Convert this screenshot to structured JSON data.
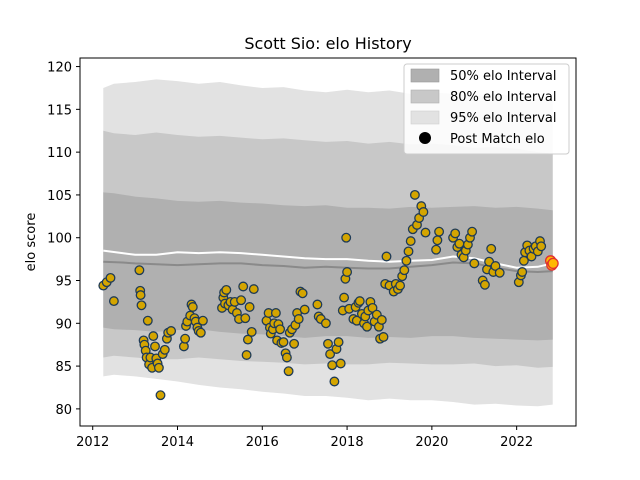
{
  "chart_data": {
    "type": "scatter",
    "title": "Scott Sio: elo History",
    "xlabel": "",
    "ylabel": "elo score",
    "xlim": [
      2011.7,
      2023.4
    ],
    "ylim": [
      78,
      121
    ],
    "x_ticks": [
      2012,
      2014,
      2016,
      2018,
      2020,
      2022
    ],
    "y_ticks": [
      80,
      85,
      90,
      95,
      100,
      105,
      110,
      115,
      120
    ],
    "grid": false,
    "legend_position": "top-right",
    "legend": [
      {
        "label": "50% elo Interval",
        "kind": "band",
        "color": "#b0b0b0"
      },
      {
        "label": "80% elo Interval",
        "kind": "band",
        "color": "#c8c8c8"
      },
      {
        "label": "95% elo Interval",
        "kind": "band",
        "color": "#e1e1e1"
      },
      {
        "label": "Post Match elo",
        "kind": "marker",
        "color": "#000000"
      }
    ],
    "colors": {
      "band50": "#b0b0b0",
      "band80": "#c8c8c8",
      "band95": "#e2e2e2",
      "median_line": "#8a8a8a",
      "mean_line": "#ffffff",
      "point_fill": "#d4a500",
      "point_edge": "#1f3b57",
      "recent_fill": "#ffb800",
      "recent_edge": "#e03030"
    },
    "bands": {
      "x": [
        2012.25,
        2012.5,
        2013.0,
        2013.5,
        2014.0,
        2014.5,
        2015.0,
        2015.5,
        2016.0,
        2016.5,
        2017.0,
        2017.5,
        2018.0,
        2018.5,
        2019.0,
        2019.5,
        2020.0,
        2020.5,
        2021.0,
        2021.5,
        2022.0,
        2022.5,
        2022.85
      ],
      "p95_upper": [
        117.5,
        118.0,
        118.2,
        118.5,
        118.3,
        118.0,
        118.2,
        117.8,
        117.5,
        117.6,
        117.2,
        117.0,
        117.3,
        117.0,
        117.2,
        116.8,
        117.0,
        116.8,
        116.5,
        116.8,
        116.5,
        116.2,
        116.0
      ],
      "p80_upper": [
        112.5,
        112.2,
        112.0,
        112.3,
        112.0,
        111.8,
        111.9,
        111.7,
        111.5,
        111.6,
        111.4,
        111.2,
        111.3,
        111.0,
        111.2,
        110.9,
        111.0,
        110.8,
        110.5,
        110.6,
        110.4,
        110.0,
        109.8
      ],
      "p50_upper": [
        105.3,
        105.2,
        104.8,
        104.6,
        104.3,
        104.2,
        104.3,
        104.1,
        104.0,
        103.8,
        103.7,
        103.8,
        103.5,
        103.5,
        103.4,
        103.6,
        103.5,
        103.6,
        103.7,
        103.5,
        103.6,
        103.4,
        103.2
      ],
      "p50_lower": [
        89.5,
        89.3,
        89.2,
        89.0,
        89.2,
        89.3,
        89.0,
        88.8,
        88.7,
        88.5,
        88.3,
        88.5,
        88.5,
        88.3,
        88.4,
        88.3,
        88.5,
        88.5,
        88.3,
        88.2,
        88.1,
        88.0,
        88.1
      ],
      "p80_lower": [
        86.0,
        86.2,
        86.0,
        85.8,
        85.8,
        86.0,
        85.8,
        85.6,
        85.5,
        85.4,
        85.2,
        85.3,
        85.2,
        85.2,
        85.4,
        85.3,
        85.2,
        85.2,
        85.3,
        85.0,
        85.1,
        84.8,
        84.9
      ],
      "p95_lower": [
        83.8,
        84.0,
        83.8,
        83.5,
        83.2,
        82.8,
        82.5,
        82.3,
        82.0,
        81.8,
        81.5,
        81.5,
        81.3,
        81.0,
        81.2,
        81.0,
        81.0,
        80.8,
        80.5,
        80.6,
        80.4,
        80.3,
        80.5
      ]
    },
    "median_line": {
      "x": [
        2012.25,
        2012.7,
        2013.0,
        2013.5,
        2014.0,
        2014.5,
        2015.0,
        2015.5,
        2016.0,
        2016.5,
        2017.0,
        2017.5,
        2018.0,
        2018.5,
        2019.0,
        2019.5,
        2020.0,
        2020.5,
        2021.0,
        2021.5,
        2022.0,
        2022.5,
        2022.85
      ],
      "y": [
        97.2,
        97.1,
        97.0,
        96.9,
        96.8,
        96.9,
        97.0,
        97.0,
        96.8,
        96.7,
        96.5,
        96.6,
        96.5,
        96.4,
        96.4,
        96.6,
        96.8,
        97.1,
        97.0,
        96.5,
        96.1,
        96.0,
        96.1
      ]
    },
    "mean_line": {
      "x": [
        2012.25,
        2012.7,
        2013.0,
        2013.5,
        2014.0,
        2014.5,
        2015.0,
        2015.5,
        2016.0,
        2016.5,
        2017.0,
        2017.5,
        2018.0,
        2018.5,
        2019.0,
        2019.5,
        2020.0,
        2020.5,
        2021.0,
        2021.5,
        2022.0,
        2022.5,
        2022.85
      ],
      "y": [
        98.5,
        98.2,
        98.0,
        98.0,
        98.3,
        98.2,
        98.3,
        98.2,
        98.0,
        97.8,
        97.6,
        97.5,
        97.5,
        97.3,
        97.2,
        97.3,
        97.4,
        97.8,
        97.6,
        97.0,
        96.5,
        96.6,
        97.0
      ]
    },
    "points": [
      [
        2012.25,
        94.4
      ],
      [
        2012.33,
        94.8
      ],
      [
        2012.42,
        95.3
      ],
      [
        2012.5,
        92.6
      ],
      [
        2013.1,
        96.2
      ],
      [
        2013.12,
        93.8
      ],
      [
        2013.13,
        93.3
      ],
      [
        2013.15,
        92.1
      ],
      [
        2013.2,
        88.0
      ],
      [
        2013.22,
        87.5
      ],
      [
        2013.25,
        86.8
      ],
      [
        2013.27,
        86.0
      ],
      [
        2013.3,
        90.3
      ],
      [
        2013.33,
        85.2
      ],
      [
        2013.36,
        86.0
      ],
      [
        2013.4,
        84.8
      ],
      [
        2013.43,
        88.5
      ],
      [
        2013.47,
        87.3
      ],
      [
        2013.5,
        85.9
      ],
      [
        2013.53,
        85.3
      ],
      [
        2013.56,
        84.8
      ],
      [
        2013.6,
        81.6
      ],
      [
        2013.65,
        86.4
      ],
      [
        2013.7,
        86.9
      ],
      [
        2013.75,
        88.2
      ],
      [
        2013.78,
        88.9
      ],
      [
        2013.85,
        89.1
      ],
      [
        2014.15,
        87.3
      ],
      [
        2014.18,
        88.2
      ],
      [
        2014.2,
        89.7
      ],
      [
        2014.23,
        90.2
      ],
      [
        2014.3,
        90.9
      ],
      [
        2014.33,
        92.2
      ],
      [
        2014.36,
        91.9
      ],
      [
        2014.4,
        90.6
      ],
      [
        2014.43,
        90.2
      ],
      [
        2014.47,
        89.5
      ],
      [
        2014.5,
        89.1
      ],
      [
        2014.55,
        88.9
      ],
      [
        2014.6,
        90.3
      ],
      [
        2015.05,
        91.8
      ],
      [
        2015.08,
        93.0
      ],
      [
        2015.1,
        93.6
      ],
      [
        2015.12,
        92.3
      ],
      [
        2015.15,
        93.9
      ],
      [
        2015.2,
        92.1
      ],
      [
        2015.25,
        92.5
      ],
      [
        2015.3,
        91.6
      ],
      [
        2015.35,
        92.5
      ],
      [
        2015.4,
        91.2
      ],
      [
        2015.45,
        90.5
      ],
      [
        2015.5,
        92.7
      ],
      [
        2015.55,
        94.3
      ],
      [
        2015.6,
        90.6
      ],
      [
        2015.63,
        86.3
      ],
      [
        2015.66,
        88.1
      ],
      [
        2015.7,
        91.9
      ],
      [
        2015.75,
        89.0
      ],
      [
        2015.8,
        94.0
      ],
      [
        2016.1,
        90.3
      ],
      [
        2016.15,
        91.2
      ],
      [
        2016.18,
        89.5
      ],
      [
        2016.2,
        88.8
      ],
      [
        2016.25,
        89.3
      ],
      [
        2016.28,
        90.0
      ],
      [
        2016.32,
        91.2
      ],
      [
        2016.35,
        88.0
      ],
      [
        2016.38,
        89.9
      ],
      [
        2016.42,
        89.3
      ],
      [
        2016.45,
        87.7
      ],
      [
        2016.5,
        87.8
      ],
      [
        2016.55,
        86.5
      ],
      [
        2016.58,
        86.0
      ],
      [
        2016.62,
        84.4
      ],
      [
        2016.65,
        88.9
      ],
      [
        2016.7,
        89.3
      ],
      [
        2016.75,
        87.6
      ],
      [
        2016.78,
        89.8
      ],
      [
        2016.82,
        91.2
      ],
      [
        2016.86,
        90.5
      ],
      [
        2016.9,
        93.7
      ],
      [
        2016.95,
        93.5
      ],
      [
        2017.0,
        91.6
      ],
      [
        2017.3,
        92.2
      ],
      [
        2017.33,
        90.8
      ],
      [
        2017.38,
        90.5
      ],
      [
        2017.5,
        90.0
      ],
      [
        2017.55,
        87.6
      ],
      [
        2017.6,
        86.4
      ],
      [
        2017.65,
        85.1
      ],
      [
        2017.7,
        83.2
      ],
      [
        2017.75,
        87.0
      ],
      [
        2017.8,
        87.8
      ],
      [
        2017.85,
        85.3
      ],
      [
        2017.9,
        91.5
      ],
      [
        2017.93,
        93.0
      ],
      [
        2017.96,
        95.2
      ],
      [
        2018.0,
        96.0
      ],
      [
        2018.05,
        91.7
      ],
      [
        2017.98,
        100.0
      ],
      [
        2018.15,
        90.5
      ],
      [
        2018.2,
        91.9
      ],
      [
        2018.23,
        90.3
      ],
      [
        2018.27,
        92.4
      ],
      [
        2018.3,
        92.6
      ],
      [
        2018.35,
        91.1
      ],
      [
        2018.4,
        90.0
      ],
      [
        2018.43,
        90.8
      ],
      [
        2018.47,
        89.6
      ],
      [
        2018.5,
        91.5
      ],
      [
        2018.55,
        92.5
      ],
      [
        2018.6,
        91.8
      ],
      [
        2018.65,
        90.2
      ],
      [
        2018.7,
        91.0
      ],
      [
        2018.75,
        89.6
      ],
      [
        2018.78,
        88.2
      ],
      [
        2018.82,
        90.4
      ],
      [
        2018.86,
        88.4
      ],
      [
        2018.9,
        94.6
      ],
      [
        2018.93,
        97.8
      ],
      [
        2019.0,
        94.4
      ],
      [
        2019.1,
        93.7
      ],
      [
        2019.15,
        94.6
      ],
      [
        2019.2,
        94.0
      ],
      [
        2019.25,
        94.4
      ],
      [
        2019.3,
        95.5
      ],
      [
        2019.35,
        96.2
      ],
      [
        2019.4,
        97.3
      ],
      [
        2019.45,
        98.4
      ],
      [
        2019.5,
        99.6
      ],
      [
        2019.55,
        101.0
      ],
      [
        2019.6,
        105.0
      ],
      [
        2019.65,
        101.5
      ],
      [
        2019.7,
        102.3
      ],
      [
        2019.75,
        103.7
      ],
      [
        2019.8,
        103.0
      ],
      [
        2019.85,
        100.6
      ],
      [
        2020.1,
        98.6
      ],
      [
        2020.13,
        99.7
      ],
      [
        2020.17,
        100.7
      ],
      [
        2020.5,
        100.0
      ],
      [
        2020.55,
        100.5
      ],
      [
        2020.6,
        98.9
      ],
      [
        2020.65,
        99.3
      ],
      [
        2020.7,
        98.0
      ],
      [
        2020.75,
        97.7
      ],
      [
        2020.8,
        98.5
      ],
      [
        2020.85,
        99.2
      ],
      [
        2020.9,
        100.0
      ],
      [
        2020.95,
        100.7
      ],
      [
        2021.0,
        97.0
      ],
      [
        2021.2,
        95.0
      ],
      [
        2021.25,
        94.5
      ],
      [
        2021.3,
        96.3
      ],
      [
        2021.35,
        97.2
      ],
      [
        2021.4,
        98.7
      ],
      [
        2021.45,
        96.0
      ],
      [
        2021.5,
        96.7
      ],
      [
        2021.6,
        95.9
      ],
      [
        2022.05,
        94.8
      ],
      [
        2022.1,
        95.6
      ],
      [
        2022.13,
        96.0
      ],
      [
        2022.17,
        97.3
      ],
      [
        2022.2,
        98.3
      ],
      [
        2022.25,
        99.1
      ],
      [
        2022.3,
        98.5
      ],
      [
        2022.35,
        97.8
      ],
      [
        2022.4,
        98.7
      ],
      [
        2022.45,
        99.0
      ],
      [
        2022.5,
        98.4
      ],
      [
        2022.55,
        99.6
      ],
      [
        2022.58,
        99.0
      ]
    ],
    "recent_points": [
      [
        2022.8,
        97.3
      ],
      [
        2022.83,
        96.8
      ],
      [
        2022.86,
        97.0
      ]
    ]
  }
}
